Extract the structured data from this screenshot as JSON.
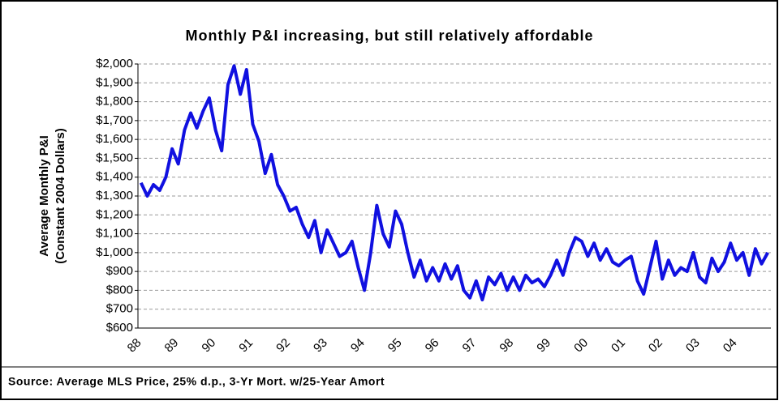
{
  "chart_data": {
    "type": "line",
    "title": "Monthly P&I increasing, but still relatively affordable",
    "ylabel": [
      "Average Monthly P&I",
      "(Constant 2004 Dollars)"
    ],
    "source": "Source: Average MLS Price, 25% d.p., 3-Yr Mort. w/25-Year Amort",
    "categories": [
      "88",
      null,
      null,
      null,
      null,
      null,
      "89",
      null,
      null,
      null,
      null,
      null,
      "90",
      null,
      null,
      null,
      null,
      null,
      "91",
      null,
      null,
      null,
      null,
      null,
      "92",
      null,
      null,
      null,
      null,
      null,
      "93",
      null,
      null,
      null,
      null,
      null,
      "94",
      null,
      null,
      null,
      null,
      null,
      "95",
      null,
      null,
      null,
      null,
      null,
      "96",
      null,
      null,
      null,
      null,
      null,
      "97",
      null,
      null,
      null,
      null,
      null,
      "98",
      null,
      null,
      null,
      null,
      null,
      "99",
      null,
      null,
      null,
      null,
      null,
      "00",
      null,
      null,
      null,
      null,
      null,
      "01",
      null,
      null,
      null,
      null,
      null,
      "02",
      null,
      null,
      null,
      null,
      null,
      "03",
      null,
      null,
      null,
      null,
      null,
      "04",
      null,
      null,
      null,
      null,
      null
    ],
    "values": [
      1370,
      1300,
      1360,
      1330,
      1400,
      1550,
      1470,
      1650,
      1740,
      1660,
      1750,
      1820,
      1650,
      1540,
      1890,
      1990,
      1840,
      1970,
      1680,
      1590,
      1420,
      1520,
      1360,
      1300,
      1220,
      1240,
      1150,
      1080,
      1170,
      1000,
      1120,
      1050,
      980,
      1000,
      1060,
      920,
      800,
      1000,
      1250,
      1100,
      1030,
      1220,
      1150,
      1000,
      870,
      960,
      850,
      920,
      850,
      940,
      860,
      930,
      800,
      760,
      850,
      750,
      870,
      830,
      890,
      800,
      870,
      800,
      880,
      840,
      860,
      820,
      880,
      960,
      880,
      1000,
      1080,
      1060,
      980,
      1050,
      960,
      1020,
      950,
      930,
      960,
      980,
      850,
      780,
      920,
      1060,
      860,
      960,
      880,
      920,
      900,
      1000,
      870,
      840,
      970,
      900,
      950,
      1050,
      960,
      1000,
      880,
      1020,
      940,
      1000
    ],
    "color": "#1010e0",
    "ylim": [
      600,
      2000
    ],
    "yticks": [
      {
        "value": 600,
        "label": "$600"
      },
      {
        "value": 700,
        "label": "$700"
      },
      {
        "value": 800,
        "label": "$800"
      },
      {
        "value": 900,
        "label": "$900"
      },
      {
        "value": 1000,
        "label": "$1,000"
      },
      {
        "value": 1100,
        "label": "$1,100"
      },
      {
        "value": 1200,
        "label": "$1,200"
      },
      {
        "value": 1300,
        "label": "$1,300"
      },
      {
        "value": 1400,
        "label": "$1,400"
      },
      {
        "value": 1500,
        "label": "$1,500"
      },
      {
        "value": 1600,
        "label": "$1,600"
      },
      {
        "value": 1700,
        "label": "$1,700"
      },
      {
        "value": 1800,
        "label": "$1,800"
      },
      {
        "value": 1900,
        "label": "$1,900"
      },
      {
        "value": 2000,
        "label": "$2,000"
      }
    ],
    "grid": true
  }
}
